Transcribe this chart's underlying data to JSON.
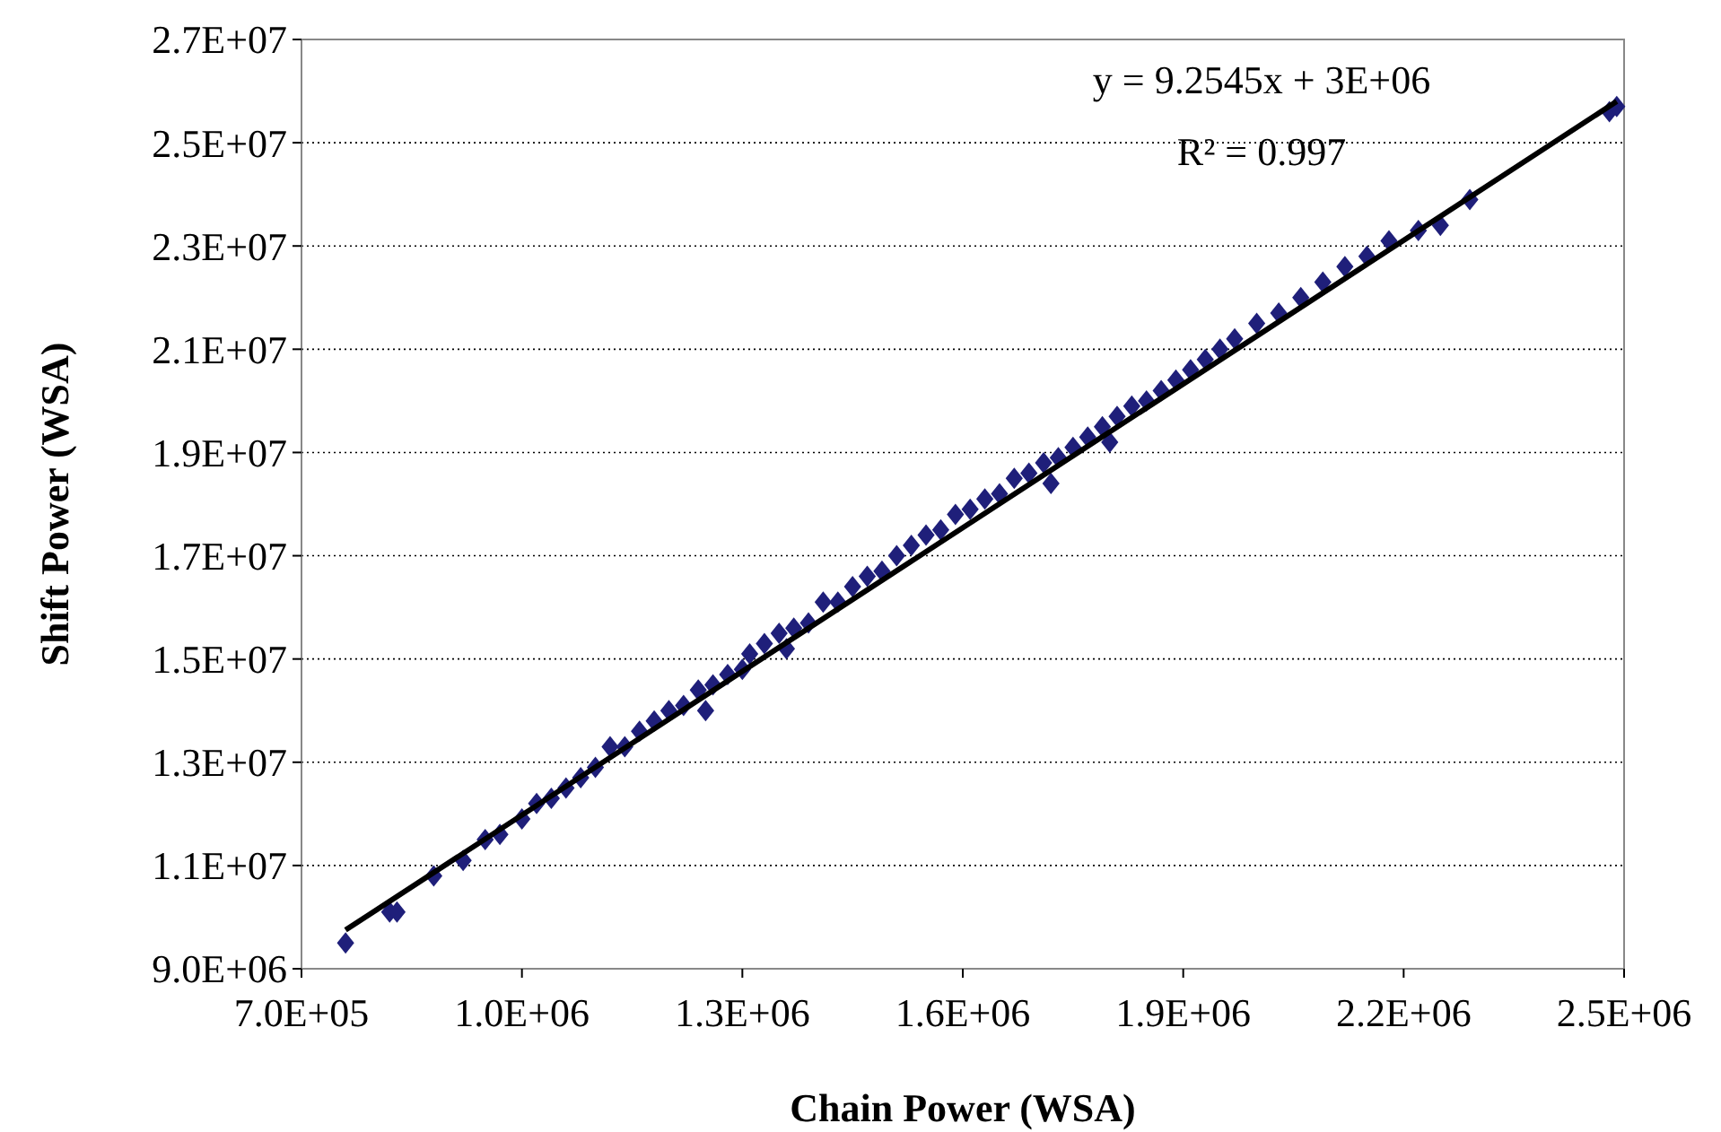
{
  "chart_data": {
    "type": "scatter",
    "xlabel": "Chain Power (WSA)",
    "ylabel": "Shift Power (WSA)",
    "annotations": [
      "y = 9.2545x + 3E+06",
      "R² = 0.997"
    ],
    "xlim": [
      700000,
      2500000
    ],
    "ylim": [
      9000000,
      27000000
    ],
    "xticks": [
      {
        "value": 700000,
        "label": "7.0E+05"
      },
      {
        "value": 1000000,
        "label": "1.0E+06"
      },
      {
        "value": 1300000,
        "label": "1.3E+06"
      },
      {
        "value": 1600000,
        "label": "1.6E+06"
      },
      {
        "value": 1900000,
        "label": "1.9E+06"
      },
      {
        "value": 2200000,
        "label": "2.2E+06"
      },
      {
        "value": 2500000,
        "label": "2.5E+06"
      }
    ],
    "yticks": [
      {
        "value": 9000000,
        "label": "9.0E+06"
      },
      {
        "value": 11000000,
        "label": "1.1E+07"
      },
      {
        "value": 13000000,
        "label": "1.3E+07"
      },
      {
        "value": 15000000,
        "label": "1.5E+07"
      },
      {
        "value": 17000000,
        "label": "1.7E+07"
      },
      {
        "value": 19000000,
        "label": "1.9E+07"
      },
      {
        "value": 21000000,
        "label": "2.1E+07"
      },
      {
        "value": 23000000,
        "label": "2.3E+07"
      },
      {
        "value": 25000000,
        "label": "2.5E+07"
      },
      {
        "value": 27000000,
        "label": "2.7E+07"
      }
    ],
    "grid": "y",
    "marker": "diamond",
    "series": [
      {
        "color": "#1f1f7a",
        "x": [
          760000,
          820000,
          830000,
          880000,
          920000,
          950000,
          970000,
          1000000,
          1020000,
          1040000,
          1060000,
          1080000,
          1100000,
          1120000,
          1140000,
          1160000,
          1180000,
          1200000,
          1220000,
          1240000,
          1250000,
          1260000,
          1280000,
          1300000,
          1310000,
          1330000,
          1350000,
          1360000,
          1370000,
          1390000,
          1410000,
          1430000,
          1450000,
          1470000,
          1490000,
          1510000,
          1530000,
          1550000,
          1570000,
          1590000,
          1610000,
          1630000,
          1650000,
          1670000,
          1690000,
          1710000,
          1720000,
          1730000,
          1750000,
          1770000,
          1790000,
          1800000,
          1810000,
          1830000,
          1850000,
          1870000,
          1890000,
          1910000,
          1930000,
          1950000,
          1970000,
          2000000,
          2030000,
          2060000,
          2090000,
          2120000,
          2150000,
          2180000,
          2220000,
          2250000,
          2290000,
          2480000,
          2490000
        ],
        "values": [
          9500000,
          10100000,
          10100000,
          10800000,
          11100000,
          11500000,
          11600000,
          11900000,
          12200000,
          12300000,
          12500000,
          12700000,
          12900000,
          13300000,
          13300000,
          13600000,
          13800000,
          14000000,
          14100000,
          14400000,
          14000000,
          14500000,
          14700000,
          14800000,
          15100000,
          15300000,
          15500000,
          15200000,
          15600000,
          15700000,
          16100000,
          16100000,
          16400000,
          16600000,
          16700000,
          17000000,
          17200000,
          17400000,
          17500000,
          17800000,
          17900000,
          18100000,
          18200000,
          18500000,
          18600000,
          18800000,
          18400000,
          18900000,
          19100000,
          19300000,
          19500000,
          19200000,
          19700000,
          19900000,
          20000000,
          20200000,
          20400000,
          20600000,
          20800000,
          21000000,
          21200000,
          21500000,
          21700000,
          22000000,
          22300000,
          22600000,
          22800000,
          23100000,
          23300000,
          23400000,
          23900000,
          25600000,
          25700000
        ]
      },
      {
        "type": "line",
        "color": "#000000",
        "marker": "none",
        "x": [
          760000,
          2490000
        ],
        "values": [
          9750000,
          25800000
        ]
      }
    ]
  }
}
